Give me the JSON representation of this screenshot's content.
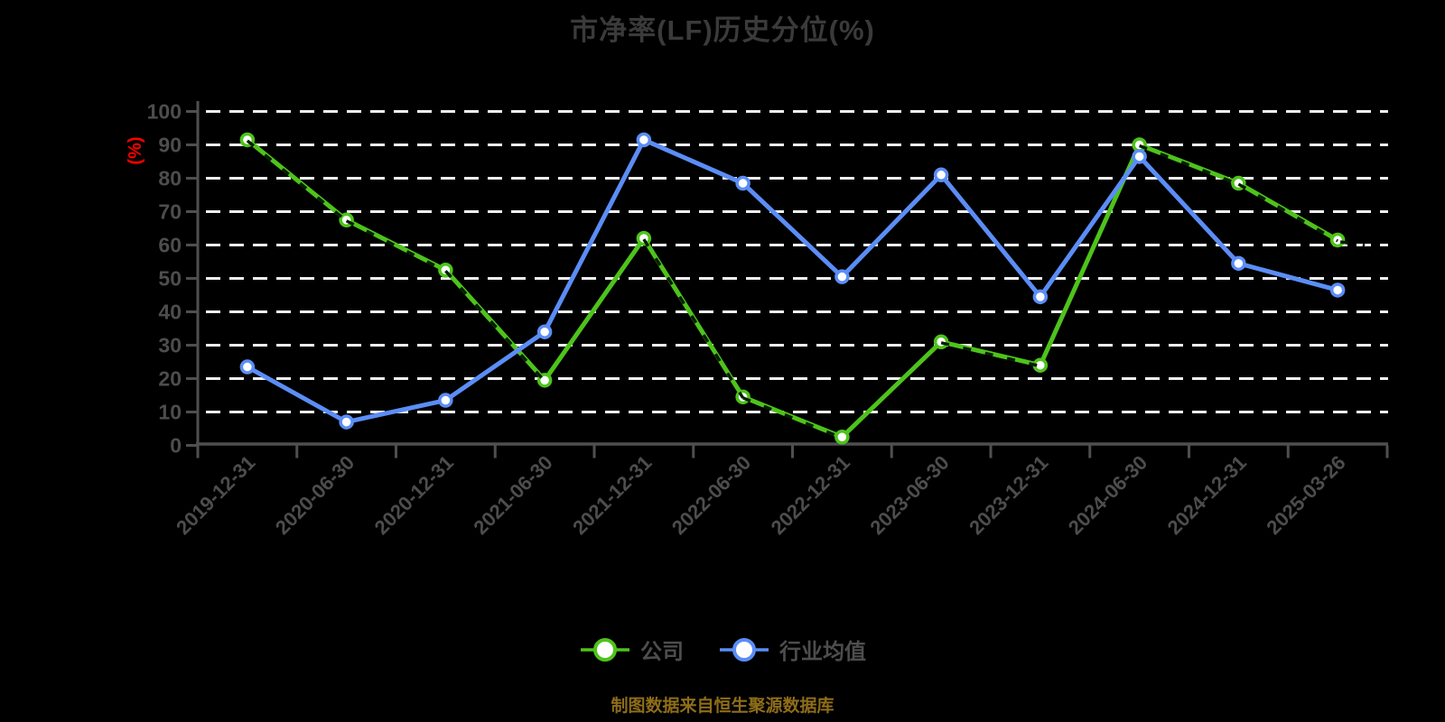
{
  "page": {
    "background_color": "#000000"
  },
  "header": {
    "title": "市净率(LF)历史分位(%)",
    "title_color": "#3a3a3a"
  },
  "footer": {
    "text": "制图数据来自恒生聚源数据库",
    "color": "#8e6d19"
  },
  "chart_data": {
    "type": "line",
    "title": "市净率(LF)历史分位(%)",
    "xlabel": "",
    "ylabel": "(%)",
    "ylabel_color": "#ff0000",
    "ylim": [
      0,
      100
    ],
    "y_ticks": [
      0,
      10,
      20,
      30,
      40,
      50,
      60,
      70,
      80,
      90,
      100
    ],
    "grid": "horizontal white dashed lines on black background",
    "legend_position": "bottom",
    "source_note": "制图数据来自恒生聚源数据库",
    "categories": [
      "2019-12-31",
      "2020-06-30",
      "2020-12-31",
      "2021-06-30",
      "2021-12-31",
      "2022-06-30",
      "2022-12-31",
      "2023-06-30",
      "2023-12-31",
      "2024-06-30",
      "2024-12-31",
      "2025-03-26"
    ],
    "series": [
      {
        "name": "公司",
        "color": "#4ec31b",
        "marker": "circle-white-fill",
        "line_style": "solid with dark dashed overlay on declining segments",
        "values": [
          91.5,
          67.5,
          52.5,
          19.5,
          62,
          14.5,
          2.5,
          31,
          24,
          90,
          78.5,
          61.5
        ]
      },
      {
        "name": "行业均值",
        "color": "#5b8df6",
        "marker": "circle-white-fill",
        "line_style": "solid",
        "values": [
          23.5,
          7,
          13.5,
          34,
          91.5,
          78.5,
          50.5,
          81,
          44.5,
          86.5,
          54.5,
          46.5
        ]
      }
    ]
  }
}
